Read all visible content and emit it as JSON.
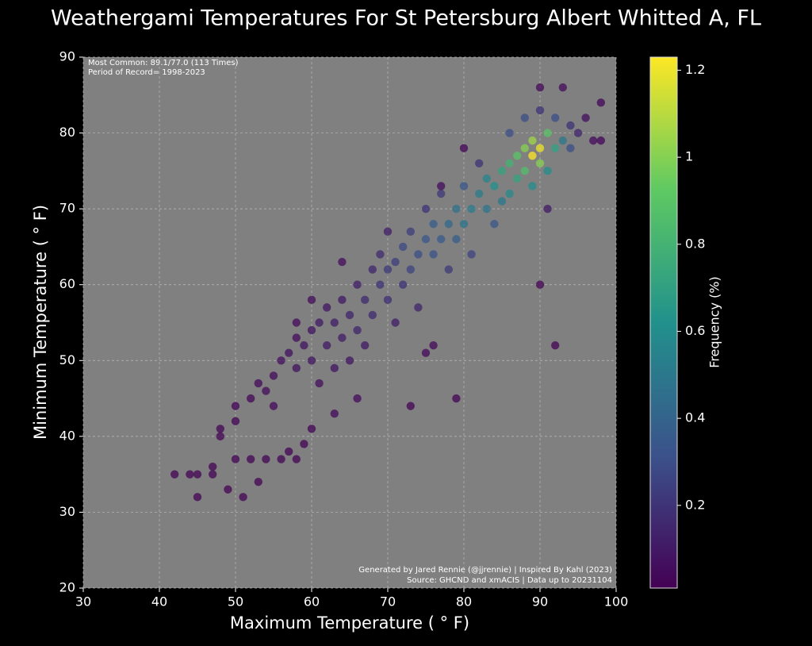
{
  "chart_data": {
    "type": "scatter",
    "title": "Weathergami Temperatures For St Petersburg Albert Whitted A, FL",
    "x_label": "Maximum Temperature ($^\\circ$F)",
    "y_label": "Minimum Temperature ($^\\circ$F)",
    "colorbar_label": "Frequency (%)",
    "annotations": [
      "Most Common: 89.1/77.0 (113 Times)",
      "Period of Record= 1998-2023",
      "Generated by Jared Rennie (@jjrennie) | Inspired By Kahl (2023)",
      "Source: GHCND and xmACIS | Data up to 20231104"
    ],
    "xlim": [
      30,
      100
    ],
    "xticks": [
      30,
      40,
      50,
      60,
      70,
      80,
      90,
      100
    ],
    "ylim": [
      20,
      90
    ],
    "yticks": [
      20,
      30,
      40,
      50,
      60,
      70,
      80,
      90
    ],
    "clim": [
      0.01,
      1.23
    ],
    "cticks": [
      0.2,
      0.4,
      0.6,
      0.8,
      1.0,
      1.2
    ],
    "colormap": "viridis",
    "grid": true,
    "series": [
      {
        "name": "Frequency",
        "x": [
          42,
          44,
          45,
          45,
          47,
          47,
          48,
          48,
          49,
          50,
          50,
          51,
          53,
          52,
          54,
          56,
          57,
          58,
          59,
          60,
          50,
          52,
          53,
          54,
          55,
          55,
          56,
          57,
          58,
          58,
          59,
          60,
          60,
          61,
          61,
          62,
          62,
          63,
          63,
          64,
          64,
          65,
          65,
          66,
          66,
          67,
          67,
          68,
          68,
          69,
          69,
          70,
          70,
          70,
          71,
          71,
          72,
          72,
          73,
          73,
          73,
          74,
          74,
          75,
          75,
          76,
          76,
          77,
          77,
          78,
          78,
          79,
          79,
          79,
          80,
          80,
          81,
          81,
          82,
          82,
          83,
          83,
          84,
          84,
          85,
          85,
          86,
          86,
          86,
          87,
          87,
          88,
          88,
          88,
          89,
          89,
          89,
          90,
          90,
          90,
          90,
          91,
          91,
          91,
          92,
          92,
          92,
          93,
          93,
          94,
          94,
          95,
          96,
          97,
          98,
          98,
          90,
          80,
          77,
          75,
          76,
          66,
          63,
          60,
          58,
          64
        ],
        "values": [
          35,
          35,
          35,
          32,
          36,
          35,
          41,
          40,
          33,
          37,
          42,
          32,
          34,
          37,
          37,
          37,
          38,
          37,
          39,
          41,
          44,
          45,
          47,
          46,
          48,
          44,
          50,
          51,
          49,
          53,
          52,
          50,
          54,
          55,
          47,
          52,
          57,
          55,
          49,
          53,
          58,
          56,
          50,
          54,
          60,
          58,
          52,
          62,
          56,
          60,
          64,
          58,
          62,
          67,
          63,
          55,
          65,
          60,
          62,
          67,
          44,
          64,
          57,
          66,
          70,
          64,
          68,
          66,
          72,
          68,
          62,
          70,
          66,
          45,
          68,
          73,
          70,
          64,
          72,
          76,
          70,
          74,
          73,
          68,
          75,
          71,
          76,
          72,
          80,
          77,
          74,
          78,
          75,
          82,
          77,
          79,
          73,
          78,
          76,
          60,
          83,
          80,
          75,
          70,
          78,
          82,
          52,
          79,
          86,
          78,
          81,
          80,
          82,
          79,
          84,
          79,
          86,
          78,
          73,
          51,
          52,
          45,
          43,
          58,
          55,
          63
        ],
        "frequency": [
          0.02,
          0.02,
          0.02,
          0.02,
          0.02,
          0.02,
          0.02,
          0.02,
          0.02,
          0.02,
          0.02,
          0.02,
          0.02,
          0.02,
          0.02,
          0.02,
          0.02,
          0.02,
          0.02,
          0.02,
          0.03,
          0.03,
          0.04,
          0.05,
          0.05,
          0.04,
          0.06,
          0.07,
          0.07,
          0.05,
          0.08,
          0.09,
          0.08,
          0.1,
          0.06,
          0.1,
          0.09,
          0.12,
          0.08,
          0.12,
          0.1,
          0.14,
          0.08,
          0.14,
          0.12,
          0.16,
          0.1,
          0.15,
          0.16,
          0.2,
          0.16,
          0.18,
          0.22,
          0.12,
          0.24,
          0.12,
          0.28,
          0.2,
          0.26,
          0.24,
          0.02,
          0.3,
          0.14,
          0.34,
          0.2,
          0.32,
          0.38,
          0.36,
          0.22,
          0.42,
          0.22,
          0.46,
          0.38,
          0.02,
          0.48,
          0.34,
          0.52,
          0.26,
          0.52,
          0.2,
          0.48,
          0.56,
          0.62,
          0.34,
          0.72,
          0.5,
          0.8,
          0.58,
          0.3,
          0.9,
          0.72,
          1.0,
          0.86,
          0.3,
          1.23,
          1.05,
          0.6,
          1.2,
          1.0,
          0.02,
          0.2,
          0.9,
          0.6,
          0.1,
          0.7,
          0.3,
          0.02,
          0.5,
          0.05,
          0.3,
          0.2,
          0.15,
          0.06,
          0.04,
          0.03,
          0.03,
          0.04,
          0.03,
          0.05,
          0.04,
          0.04,
          0.04,
          0.04,
          0.05,
          0.04,
          0.05
        ]
      }
    ]
  }
}
